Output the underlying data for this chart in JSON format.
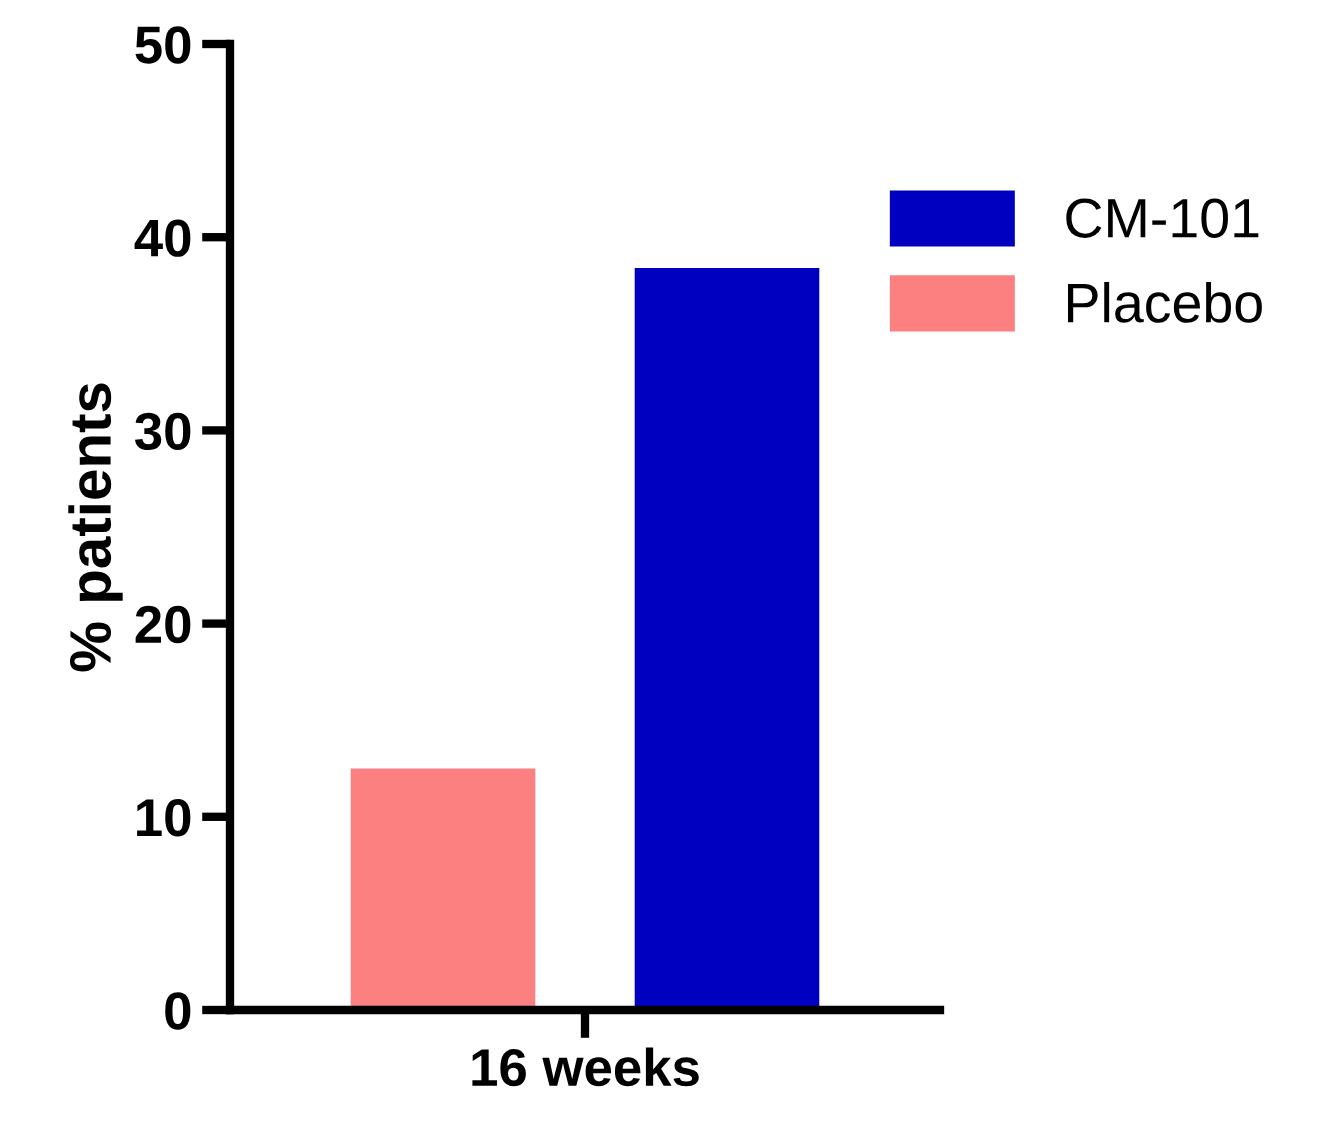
{
  "chart_data": {
    "type": "bar",
    "ylabel": "% patients",
    "categories": [
      "16 weeks"
    ],
    "series": [
      {
        "name": "Placebo",
        "color": "#fc8080",
        "values": [
          12.5
        ]
      },
      {
        "name": "CM-101",
        "color": "#0000c0",
        "values": [
          38.4
        ]
      }
    ],
    "ylim": [
      0,
      50
    ],
    "yticks": [
      0,
      10,
      20,
      30,
      40,
      50
    ],
    "grid": false,
    "legend": "right"
  }
}
